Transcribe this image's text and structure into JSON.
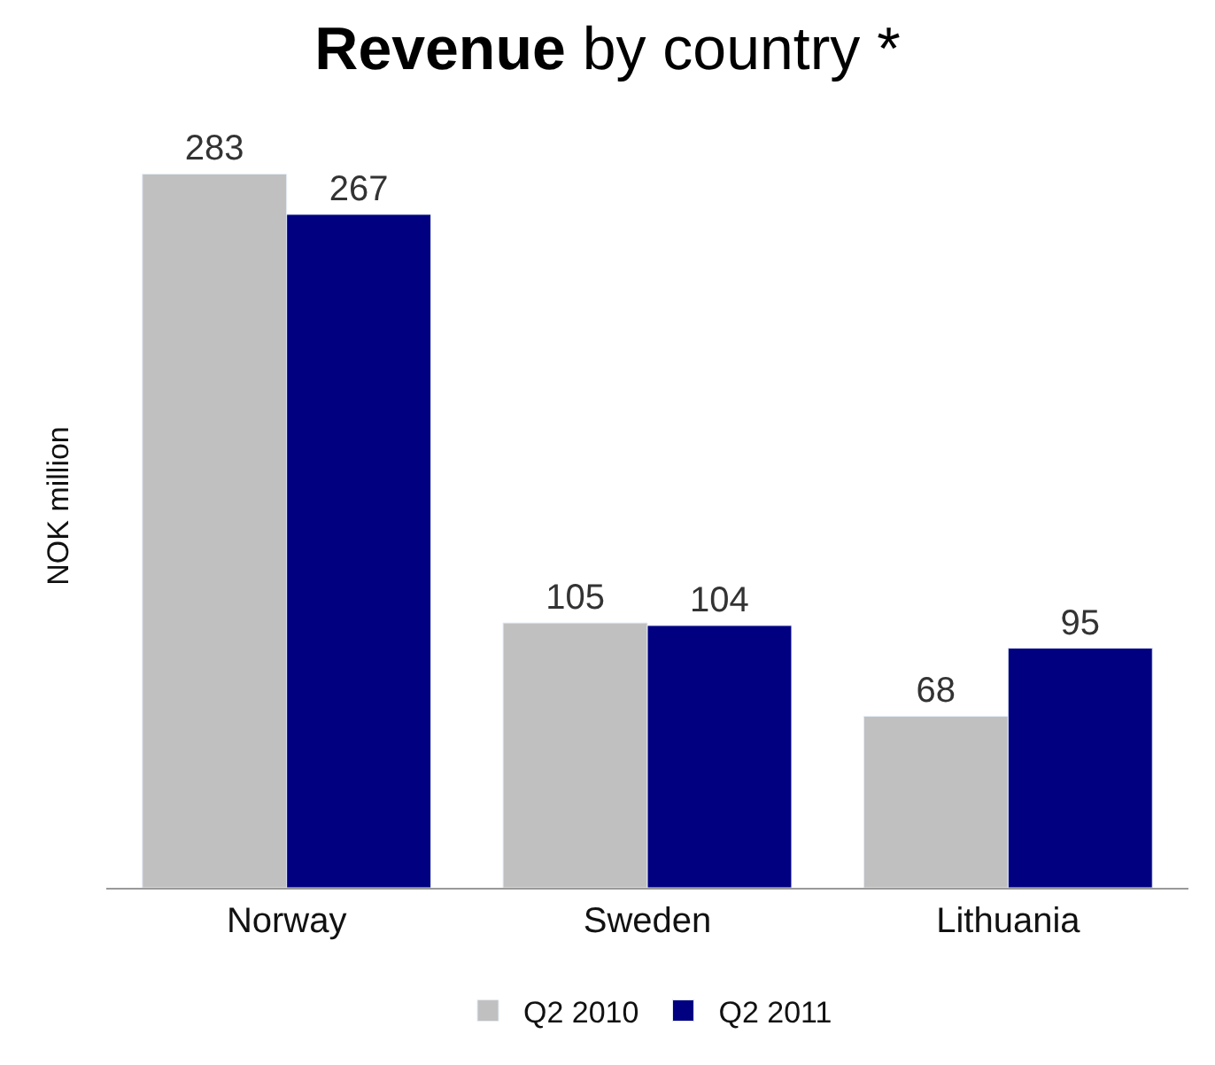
{
  "chart_data": {
    "type": "bar",
    "title": "Revenue by country *",
    "ylabel": "NOK million",
    "categories": [
      "Norway",
      "Sweden",
      "Lithuania"
    ],
    "series": [
      {
        "name": "Q2 2010",
        "color": "#c0c0c0",
        "values": [
          283,
          105,
          68
        ]
      },
      {
        "name": "Q2 2011",
        "color": "#000080",
        "values": [
          267,
          104,
          95
        ]
      }
    ],
    "data_labels": true,
    "legend": "bottom"
  }
}
